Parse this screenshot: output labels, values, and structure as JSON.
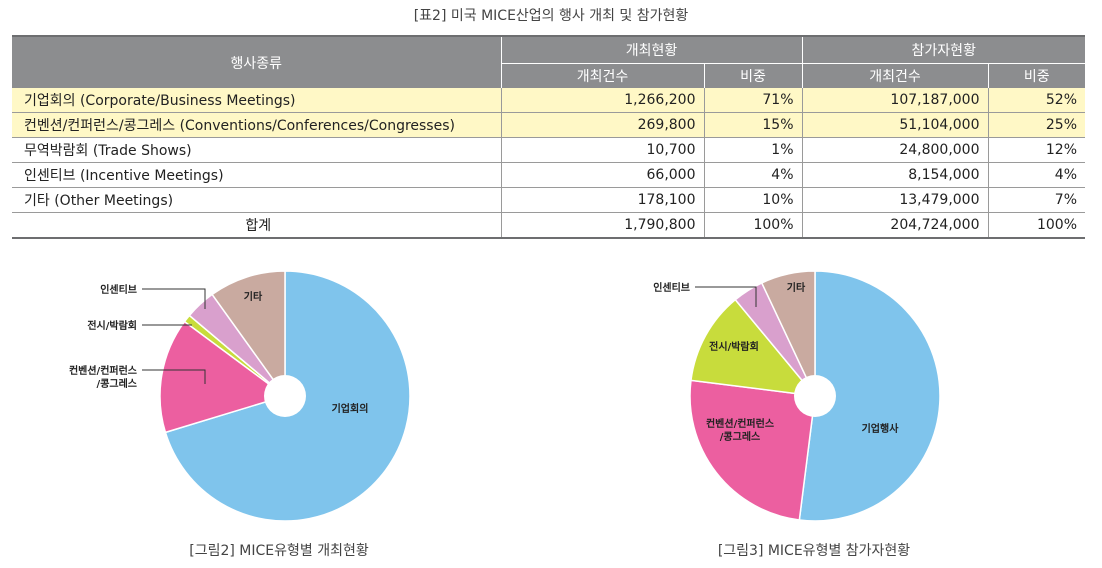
{
  "title": "[표2] 미국 MICE산업의 행사 개최 및 참가현황",
  "table": {
    "col_type": "행사종류",
    "group1": "개최현황",
    "group2": "참가자현황",
    "sub_count": "개최건수",
    "sub_ratio": "비중",
    "rows": [
      {
        "name": "기업회의 (Corporate/Business Meetings)",
        "c1": "1,266,200",
        "r1": "71%",
        "c2": "107,187,000",
        "r2": "52%"
      },
      {
        "name": "컨벤션/컨퍼런스/콩그레스 (Conventions/Conferences/Congresses)",
        "c1": "269,800",
        "r1": "15%",
        "c2": "51,104,000",
        "r2": "25%"
      },
      {
        "name": "무역박람회 (Trade Shows)",
        "c1": "10,700",
        "r1": "1%",
        "c2": "24,800,000",
        "r2": "12%"
      },
      {
        "name": "인센티브 (Incentive Meetings)",
        "c1": "66,000",
        "r1": "4%",
        "c2": "8,154,000",
        "r2": "4%"
      },
      {
        "name": "기타 (Other Meetings)",
        "c1": "178,100",
        "r1": "10%",
        "c2": "13,479,000",
        "r2": "7%"
      }
    ],
    "total": {
      "name": "합계",
      "c1": "1,790,800",
      "r1": "100%",
      "c2": "204,724,000",
      "r2": "100%"
    }
  },
  "chart_data": [
    {
      "type": "pie",
      "caption": "[그림2] MICE유형별 개최현황",
      "slices": [
        {
          "label": "기업회의",
          "value": 71,
          "color": "#7fc4ec"
        },
        {
          "label": "컨벤션/컨퍼런스\n/콩그레스",
          "value": 15,
          "color": "#ec5fa0"
        },
        {
          "label": "전시/박람회",
          "value": 1,
          "color": "#c8dc3c"
        },
        {
          "label": "인센티브",
          "value": 4,
          "color": "#d9a0cd"
        },
        {
          "label": "기타",
          "value": 10,
          "color": "#c9aaa0"
        }
      ]
    },
    {
      "type": "pie",
      "caption": "[그림3] MICE유형별 참가자현황",
      "slices": [
        {
          "label": "기업행사",
          "value": 52,
          "color": "#7fc4ec"
        },
        {
          "label": "컨벤션/컨퍼런스\n/콩그레스",
          "value": 25,
          "color": "#ec5fa0"
        },
        {
          "label": "전시/박람회",
          "value": 12,
          "color": "#c8dc3c"
        },
        {
          "label": "인센티브",
          "value": 4,
          "color": "#d9a0cd"
        },
        {
          "label": "기타",
          "value": 7,
          "color": "#c9aaa0"
        }
      ]
    }
  ]
}
